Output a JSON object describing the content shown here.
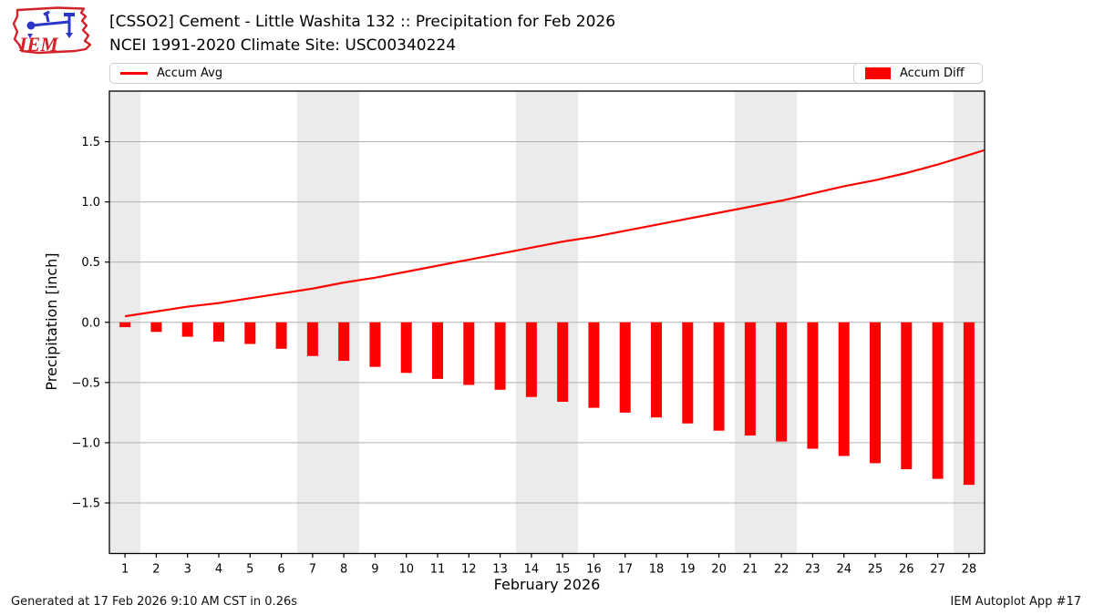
{
  "header": {
    "title_line1": "[CSSO2] Cement - Little Washita 132 :: Precipitation for Feb 2026",
    "title_line2": "NCEI 1991-2020 Climate Site: USC00340224",
    "logo_text": "IEM"
  },
  "legend": {
    "avg_label": "Accum Avg",
    "diff_label": "Accum Diff"
  },
  "footer": {
    "generated": "Generated at 17 Feb 2026 9:10 AM CST in 0.26s",
    "app": "IEM Autoplot App #17"
  },
  "chart_data": {
    "type": "bar",
    "title": "[CSSO2] Cement - Little Washita 132 :: Precipitation for Feb 2026",
    "subtitle": "NCEI 1991-2020 Climate Site: USC00340224",
    "xlabel": "February 2026",
    "ylabel": "Precipitation [inch]",
    "days": [
      1,
      2,
      3,
      4,
      5,
      6,
      7,
      8,
      9,
      10,
      11,
      12,
      13,
      14,
      15,
      16,
      17,
      18,
      19,
      20,
      21,
      22,
      23,
      24,
      25,
      26,
      27,
      28
    ],
    "series": [
      {
        "name": "Accum Avg",
        "render": "line",
        "color": "#ff0000",
        "values": [
          0.05,
          0.09,
          0.13,
          0.16,
          0.2,
          0.24,
          0.28,
          0.33,
          0.37,
          0.42,
          0.47,
          0.52,
          0.57,
          0.62,
          0.67,
          0.71,
          0.76,
          0.81,
          0.86,
          0.91,
          0.96,
          1.01,
          1.07,
          1.13,
          1.18,
          1.24,
          1.31,
          1.39
        ]
      },
      {
        "name": "Accum Diff",
        "render": "bar",
        "color": "#ff0000",
        "values": [
          -0.04,
          -0.08,
          -0.12,
          -0.16,
          -0.18,
          -0.22,
          -0.28,
          -0.32,
          -0.37,
          -0.42,
          -0.47,
          -0.52,
          -0.56,
          -0.62,
          -0.66,
          -0.71,
          -0.75,
          -0.79,
          -0.84,
          -0.9,
          -0.94,
          -0.99,
          -1.05,
          -1.11,
          -1.17,
          -1.22,
          -1.3,
          -1.35
        ]
      }
    ],
    "xlim": [
      0.5,
      28.5
    ],
    "ylim": [
      -1.92,
      1.92
    ],
    "yticks": [
      -1.5,
      -1.0,
      -0.5,
      0.0,
      0.5,
      1.0,
      1.5
    ],
    "grid": "horizontal",
    "grid_color": "#b0b0b0",
    "weekend_bands": [
      [
        0.5,
        1.5
      ],
      [
        6.5,
        8.5
      ],
      [
        13.5,
        15.5
      ],
      [
        20.5,
        22.5
      ],
      [
        27.5,
        28.5
      ]
    ],
    "band_color": "#ebebeb",
    "legend_position": "top row: Accum Avg left, Accum Diff right"
  }
}
